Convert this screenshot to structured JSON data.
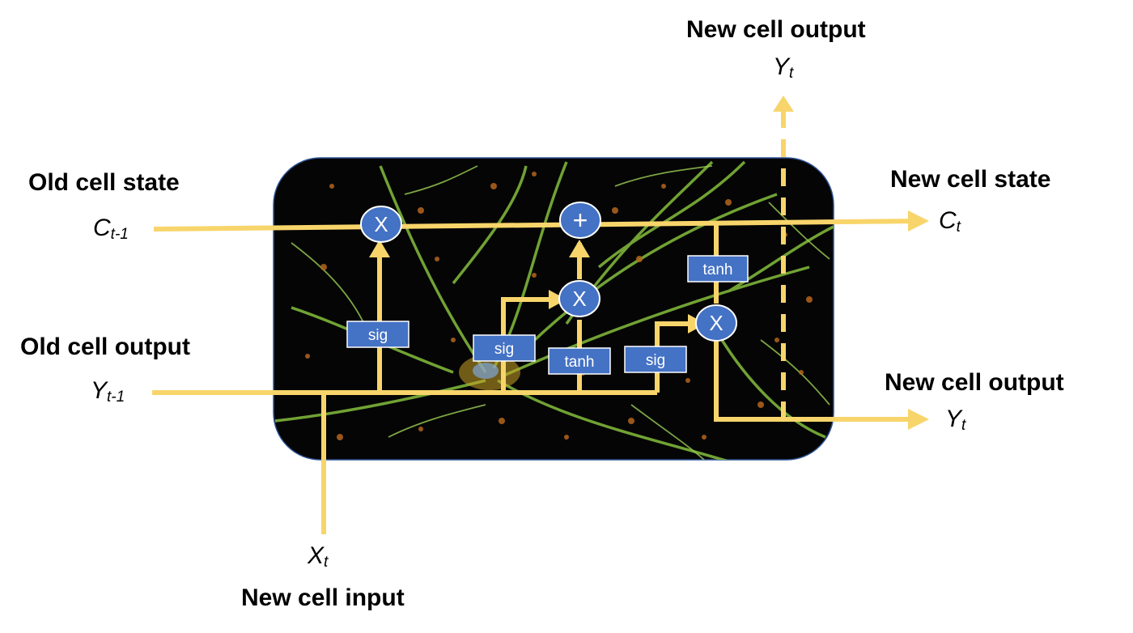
{
  "labels": {
    "old_cell_state": "Old cell state",
    "old_cell_output": "Old cell output",
    "new_cell_state": "New cell state",
    "new_cell_output_right": "New cell output",
    "new_cell_output_top": "New cell output",
    "new_cell_input": "New cell input"
  },
  "symbols": {
    "c_prev": {
      "base": "C",
      "sub": "t-1"
    },
    "y_prev": {
      "base": "Y",
      "sub": "t-1"
    },
    "c_new": {
      "base": "C",
      "sub": "t"
    },
    "y_new_right": {
      "base": "Y",
      "sub": "t"
    },
    "y_new_top": {
      "base": "Y",
      "sub": "t"
    },
    "x_in": {
      "base": "X",
      "sub": "t"
    }
  },
  "gates": {
    "forget_sig": "sig",
    "input_sig": "sig",
    "candidate_tanh": "tanh",
    "output_sig": "sig",
    "state_tanh": "tanh"
  },
  "operators": {
    "forget_mul": "X",
    "state_add": "+",
    "input_mul": "X",
    "output_mul": "X"
  },
  "colors": {
    "flow_line": "#F8D56B",
    "gate_box": "#4472C4",
    "gate_border": "#ffffff",
    "cell_background": "#050505",
    "cell_border": "#2F5597",
    "neuron_green": "#7DB43A",
    "neuron_orange": "#B5651D"
  }
}
